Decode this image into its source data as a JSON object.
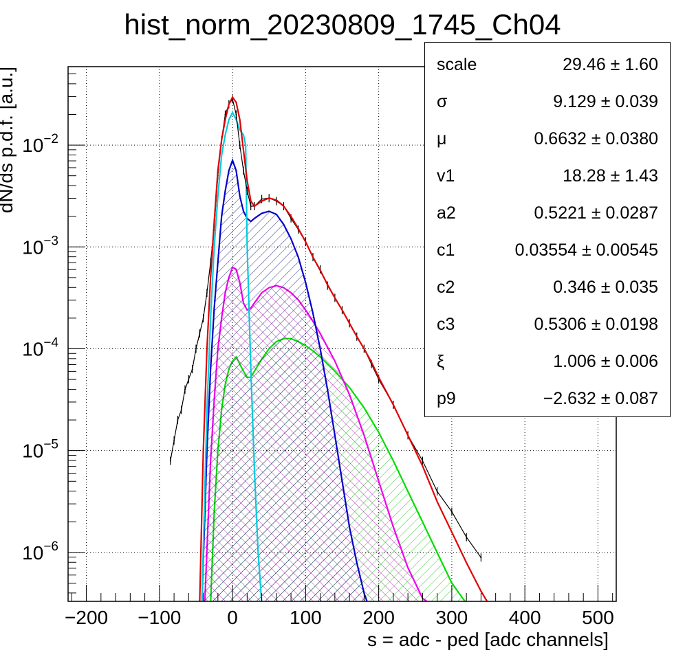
{
  "chart_data": {
    "type": "line",
    "title": "hist_norm_20230809_1745_Ch04",
    "xlabel": "s = adc - ped [adc channels]",
    "ylabel": "dN/ds p.d.f. [a.u.]",
    "x_range": [
      -225,
      525
    ],
    "y_range_log10": [
      -6.48,
      -1.23
    ],
    "y_scale": "log",
    "grid": true,
    "x_ticks": [
      "−200",
      "−100",
      "0",
      "100",
      "200",
      "300",
      "400",
      "500"
    ],
    "x_tick_values": [
      -200,
      -100,
      0,
      100,
      200,
      300,
      400,
      500
    ],
    "y_ticks": [
      {
        "base": "10",
        "exp": "−6",
        "value_log10": -6
      },
      {
        "base": "10",
        "exp": "−5",
        "value_log10": -5
      },
      {
        "base": "10",
        "exp": "−4",
        "value_log10": -4
      },
      {
        "base": "10",
        "exp": "−3",
        "value_log10": -3
      },
      {
        "base": "10",
        "exp": "−2",
        "value_log10": -2
      }
    ],
    "colors": {
      "data": "#000000",
      "total_fit": "#e00000",
      "cyan_component": "#00ccdd",
      "blue_component": "#0000cc",
      "magenta_component": "#ee00ee",
      "green_component": "#00dd00"
    },
    "series": [
      {
        "key": "data",
        "style": "histogram",
        "x": [
          -85,
          -80,
          -75,
          -70,
          -65,
          -60,
          -55,
          -50,
          -45,
          -40,
          -35,
          -30,
          -25,
          -20,
          -15,
          -10,
          -5,
          0,
          5,
          10,
          15,
          20,
          25,
          30,
          40,
          50,
          60,
          70,
          80,
          90,
          100,
          110,
          120,
          130,
          140,
          150,
          160,
          170,
          180,
          190,
          200,
          220,
          240,
          260,
          280,
          300,
          320,
          340
        ],
        "log10_y": [
          -5.1,
          -4.9,
          -4.7,
          -4.6,
          -4.4,
          -4.3,
          -4.2,
          -4.0,
          -3.85,
          -3.7,
          -3.45,
          -3.15,
          -2.8,
          -2.3,
          -1.95,
          -1.7,
          -1.6,
          -1.55,
          -1.7,
          -2.0,
          -2.25,
          -2.45,
          -2.6,
          -2.6,
          -2.53,
          -2.52,
          -2.55,
          -2.6,
          -2.72,
          -2.83,
          -2.95,
          -3.1,
          -3.22,
          -3.38,
          -3.5,
          -3.62,
          -3.75,
          -3.88,
          -4.0,
          -4.15,
          -4.3,
          -4.55,
          -4.85,
          -5.1,
          -5.4,
          -5.6,
          -5.85,
          -6.05
        ]
      },
      {
        "key": "total_fit",
        "x": [
          -45,
          -40,
          -35,
          -30,
          -25,
          -20,
          -15,
          -10,
          -5,
          0,
          5,
          10,
          15,
          20,
          25,
          30,
          40,
          50,
          60,
          70,
          80,
          90,
          100,
          110,
          120,
          130,
          140,
          150,
          160,
          170,
          180,
          190,
          200,
          220,
          240,
          260,
          280,
          300,
          320,
          340,
          350
        ],
        "log10_y": [
          -6.5,
          -5.0,
          -4.0,
          -3.3,
          -2.75,
          -2.25,
          -1.95,
          -1.75,
          -1.6,
          -1.53,
          -1.58,
          -1.75,
          -2.05,
          -2.35,
          -2.55,
          -2.6,
          -2.55,
          -2.52,
          -2.54,
          -2.6,
          -2.7,
          -2.82,
          -2.95,
          -3.1,
          -3.23,
          -3.37,
          -3.5,
          -3.62,
          -3.75,
          -3.88,
          -4.0,
          -4.13,
          -4.28,
          -4.55,
          -4.85,
          -5.15,
          -5.5,
          -5.8,
          -6.1,
          -6.38,
          -6.5
        ]
      },
      {
        "key": "cyan_component",
        "x": [
          -42,
          -35,
          -30,
          -25,
          -20,
          -15,
          -10,
          -5,
          0,
          5,
          10,
          15,
          18,
          20,
          25,
          30,
          35,
          40
        ],
        "log10_y": [
          -6.5,
          -4.6,
          -3.7,
          -3.0,
          -2.5,
          -2.1,
          -1.9,
          -1.75,
          -1.68,
          -1.75,
          -1.85,
          -1.9,
          -2.0,
          -3.0,
          -4.2,
          -5.2,
          -6.0,
          -6.5
        ],
        "hatch": false
      },
      {
        "key": "blue_component",
        "x": [
          -42,
          -35,
          -30,
          -25,
          -20,
          -15,
          -10,
          -5,
          0,
          5,
          10,
          15,
          20,
          25,
          30,
          40,
          50,
          60,
          70,
          80,
          90,
          100,
          110,
          120,
          130,
          140,
          150,
          160,
          170,
          180,
          185
        ],
        "log10_y": [
          -6.5,
          -5.0,
          -4.2,
          -3.6,
          -3.15,
          -2.7,
          -2.45,
          -2.25,
          -2.15,
          -2.25,
          -2.5,
          -2.65,
          -2.72,
          -2.75,
          -2.72,
          -2.67,
          -2.65,
          -2.68,
          -2.78,
          -2.92,
          -3.1,
          -3.35,
          -3.65,
          -4.0,
          -4.4,
          -4.85,
          -5.3,
          -5.75,
          -6.1,
          -6.4,
          -6.5
        ],
        "hatch": true
      },
      {
        "key": "magenta_component",
        "x": [
          -38,
          -30,
          -25,
          -20,
          -15,
          -10,
          -5,
          0,
          5,
          10,
          15,
          20,
          25,
          30,
          40,
          50,
          60,
          70,
          80,
          90,
          100,
          110,
          120,
          140,
          160,
          180,
          200,
          220,
          240,
          250,
          260,
          270
        ],
        "log10_y": [
          -6.5,
          -5.1,
          -4.5,
          -4.0,
          -3.7,
          -3.45,
          -3.3,
          -3.2,
          -3.22,
          -3.35,
          -3.55,
          -3.62,
          -3.6,
          -3.55,
          -3.45,
          -3.4,
          -3.38,
          -3.4,
          -3.45,
          -3.52,
          -3.62,
          -3.73,
          -3.85,
          -4.12,
          -4.45,
          -4.85,
          -5.3,
          -5.75,
          -6.15,
          -6.3,
          -6.45,
          -6.5
        ],
        "hatch": true
      },
      {
        "key": "green_component",
        "x": [
          -30,
          -25,
          -20,
          -15,
          -10,
          -5,
          0,
          5,
          10,
          15,
          20,
          25,
          30,
          40,
          50,
          60,
          70,
          80,
          90,
          100,
          110,
          120,
          140,
          160,
          180,
          200,
          220,
          240,
          260,
          280,
          300,
          310,
          320
        ],
        "log10_y": [
          -6.5,
          -5.6,
          -5.0,
          -4.6,
          -4.35,
          -4.2,
          -4.12,
          -4.08,
          -4.15,
          -4.22,
          -4.28,
          -4.28,
          -4.22,
          -4.1,
          -4.0,
          -3.93,
          -3.9,
          -3.9,
          -3.93,
          -3.97,
          -4.02,
          -4.08,
          -4.22,
          -4.38,
          -4.58,
          -4.82,
          -5.1,
          -5.4,
          -5.7,
          -6.0,
          -6.3,
          -6.4,
          -6.5
        ],
        "hatch": true
      }
    ]
  },
  "stats": [
    {
      "name": "scale",
      "value": "29.46 ± 1.60"
    },
    {
      "name": "σ",
      "value": "9.129 ± 0.039"
    },
    {
      "name": "μ",
      "value": "0.6632 ± 0.0380"
    },
    {
      "name": "v1",
      "value": "18.28 ± 1.43"
    },
    {
      "name": "a2",
      "value": "0.5221 ± 0.0287"
    },
    {
      "name": "c1",
      "value": "0.03554 ± 0.00545"
    },
    {
      "name": "c2",
      "value": "0.346 ± 0.035"
    },
    {
      "name": "c3",
      "value": "0.5306 ± 0.0198"
    },
    {
      "name": "ξ",
      "value": "1.006 ± 0.006"
    },
    {
      "name": "p9",
      "value": "−2.632 ± 0.087"
    }
  ]
}
